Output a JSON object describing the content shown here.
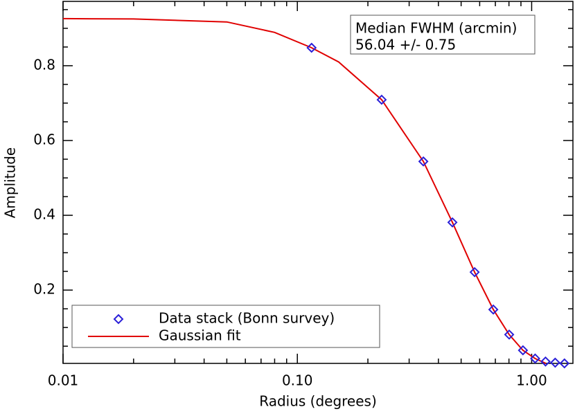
{
  "chart_data": {
    "type": "scatter-fit",
    "xlabel": "Radius (degrees)",
    "ylabel": "Amplitude",
    "log_x": true,
    "xlim": [
      0.01,
      1.5
    ],
    "ylim": [
      0.004,
      0.972
    ],
    "xticks": [
      {
        "value": 0.01,
        "label": "0.01"
      },
      {
        "value": 0.1,
        "label": "0.10"
      },
      {
        "value": 1,
        "label": "1.00"
      }
    ],
    "xminorticks": [
      0.02,
      0.03,
      0.04,
      0.05,
      0.06,
      0.07,
      0.08,
      0.09,
      0.2,
      0.3,
      0.4,
      0.5,
      0.6,
      0.7,
      0.8,
      0.9
    ],
    "yticks": [
      0.2,
      0.4,
      0.6,
      0.8
    ],
    "yminorticks": [
      0.05,
      0.1,
      0.15,
      0.25,
      0.3,
      0.35,
      0.45,
      0.5,
      0.55,
      0.65,
      0.7,
      0.75,
      0.85,
      0.9,
      0.95
    ],
    "series": [
      {
        "name": "Data stack (Bonn survey)",
        "color": "#2a1fd8",
        "marker": "diamond",
        "x": [
          0.115,
          0.229,
          0.345,
          0.459,
          0.571,
          0.686,
          0.802,
          0.918,
          1.035,
          1.146,
          1.26,
          1.38
        ],
        "values": [
          0.848,
          0.709,
          0.544,
          0.381,
          0.248,
          0.148,
          0.081,
          0.039,
          0.017,
          0.009,
          0.006,
          0.004
        ]
      },
      {
        "name": "Gaussian fit",
        "color": "#e00000",
        "marker": "line",
        "x": [
          0.01,
          0.02,
          0.05,
          0.08,
          0.115,
          0.15,
          0.229,
          0.345,
          0.459,
          0.571,
          0.686,
          0.802,
          0.918,
          1.035,
          1.15
        ],
        "values": [
          0.926,
          0.925,
          0.917,
          0.889,
          0.848,
          0.81,
          0.709,
          0.544,
          0.381,
          0.248,
          0.148,
          0.081,
          0.039,
          0.017,
          0.004
        ]
      }
    ],
    "annotation": [
      "Median FWHM (arcmin)",
      "56.04 +/- 0.75"
    ]
  }
}
